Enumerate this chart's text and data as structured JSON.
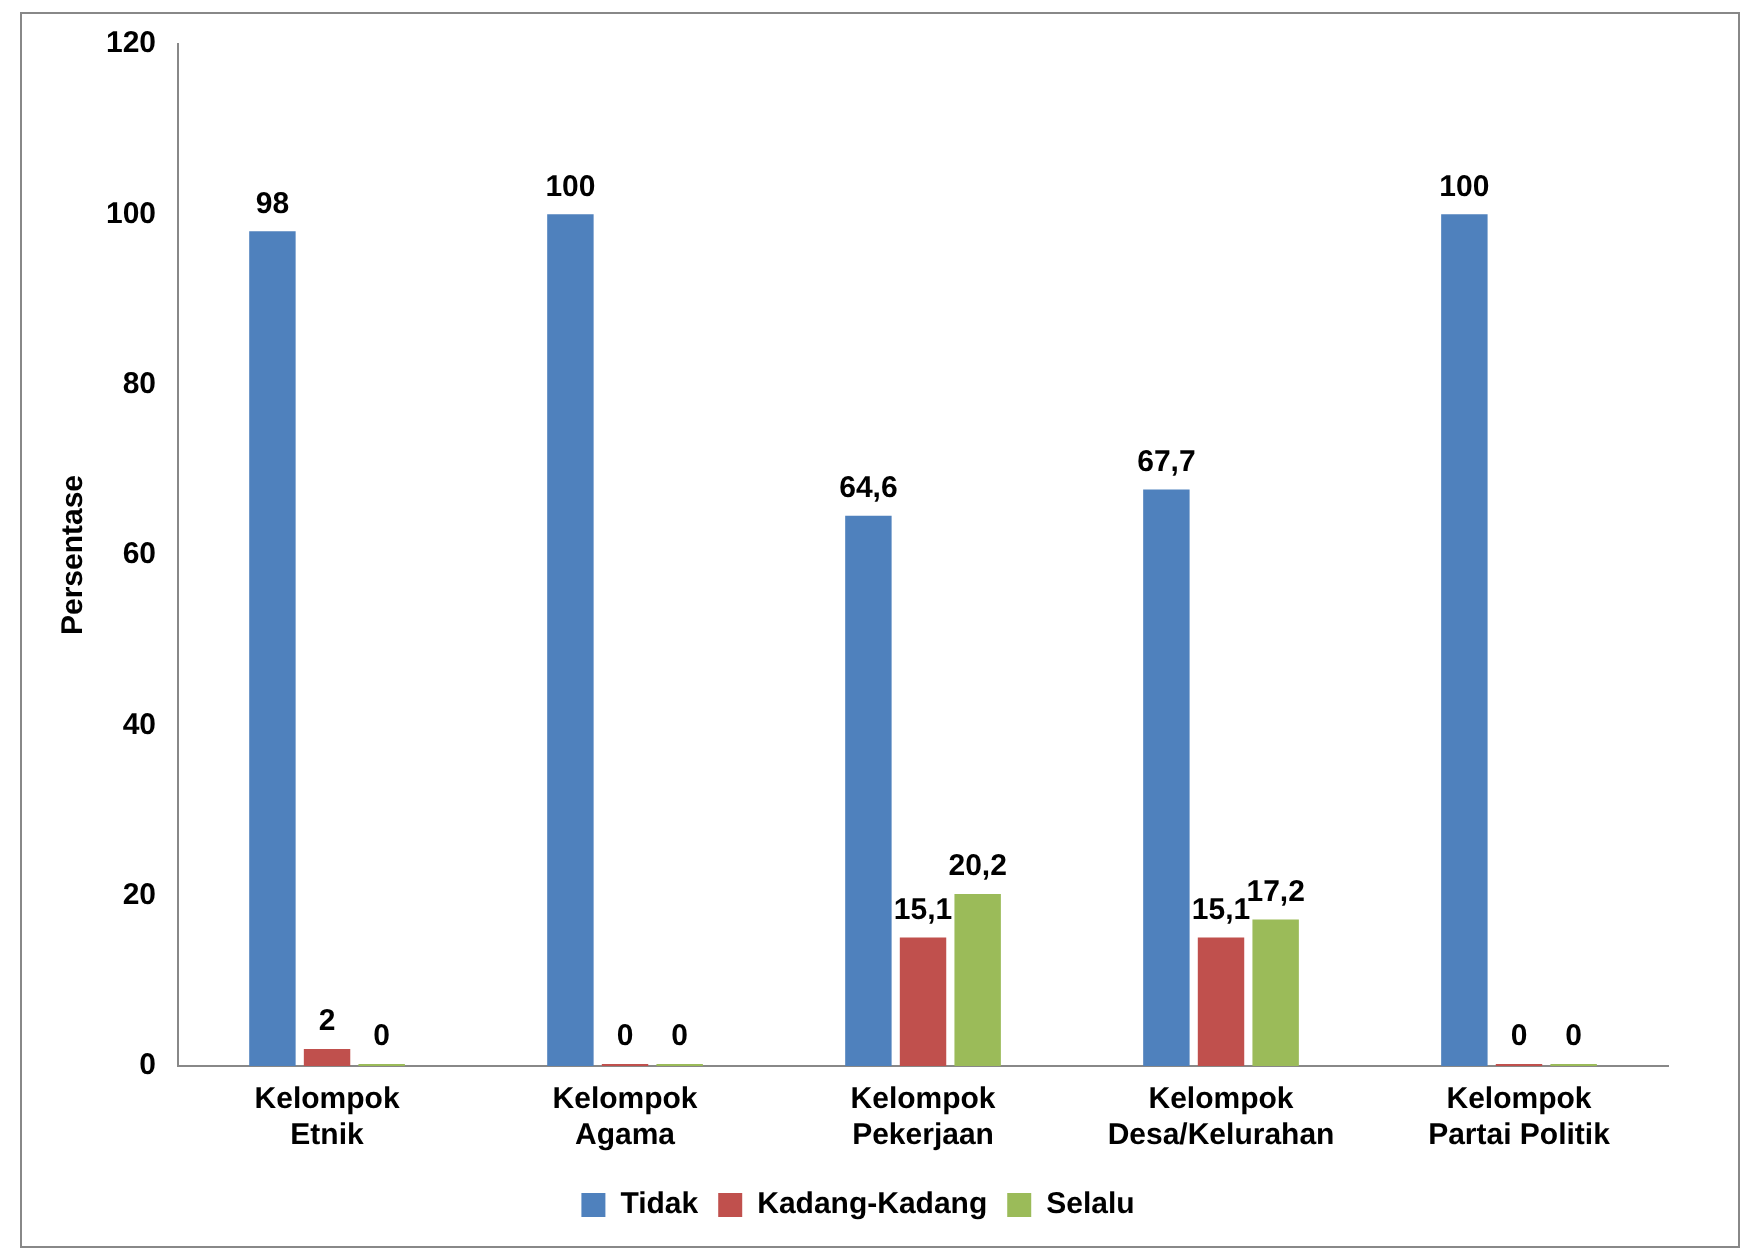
{
  "chart_data": {
    "type": "bar",
    "ylabel": "Persentase",
    "categories": [
      "Kelompok Etnik",
      "Kelompok Agama",
      "Kelompok Pekerjaan",
      "Kelompok Desa/Kelurahan",
      "Kelompok Partai Politik"
    ],
    "series": [
      {
        "name": "Tidak",
        "color": "#4f81bd",
        "values": [
          98,
          100,
          64.6,
          67.7,
          100
        ],
        "value_labels": [
          "98",
          "100",
          "64,6",
          "67,7",
          "100"
        ]
      },
      {
        "name": "Kadang-Kadang",
        "color": "#c0504d",
        "values": [
          2,
          0,
          15.1,
          15.1,
          0
        ],
        "value_labels": [
          "2",
          "0",
          "15,1",
          "15,1",
          "0"
        ]
      },
      {
        "name": "Selalu",
        "color": "#9bbb59",
        "values": [
          0,
          0,
          20.2,
          17.2,
          0
        ],
        "value_labels": [
          "0",
          "0",
          "20,2",
          "17,2",
          "0"
        ]
      }
    ],
    "ylim": [
      0,
      120
    ],
    "yticks": [
      0,
      20,
      40,
      60,
      80,
      100,
      120
    ],
    "grid": false,
    "legend": "bottom"
  }
}
